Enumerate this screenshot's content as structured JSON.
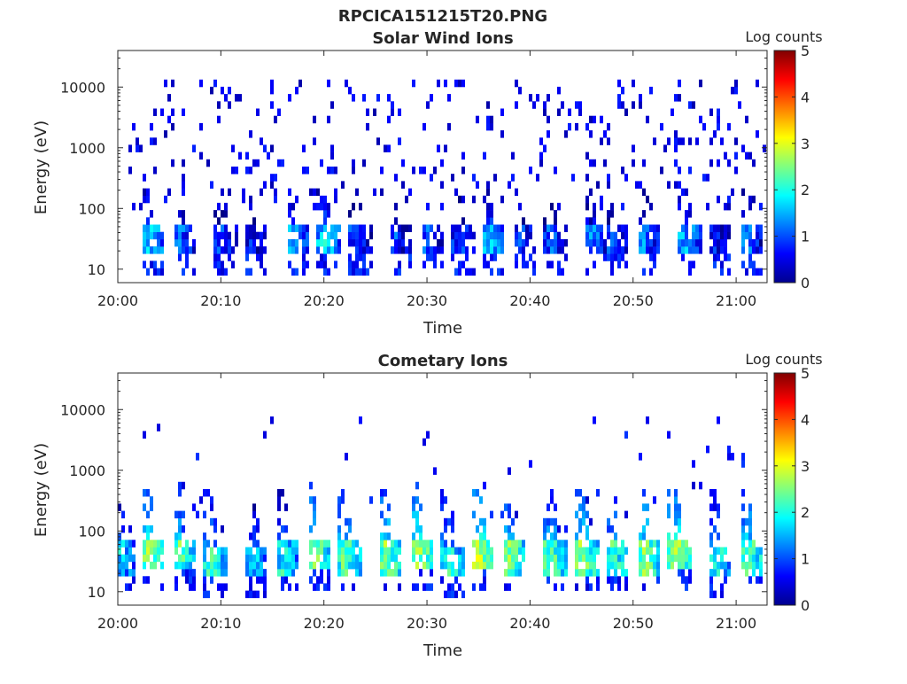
{
  "figure_title": "RPCICA151215T20.PNG",
  "colormap": "jet",
  "chart_data": [
    {
      "type": "heatmap",
      "title": "Solar Wind Ions",
      "xlabel": "Time",
      "ylabel": "Energy (eV)",
      "x_ticks": [
        "20:00",
        "20:10",
        "20:20",
        "20:30",
        "20:40",
        "20:50",
        "21:00"
      ],
      "xlim": [
        "20:00",
        "21:03"
      ],
      "y_scale": "log",
      "y_ticks": [
        "10",
        "100",
        "1000",
        "10000"
      ],
      "ylim": [
        6,
        40000
      ],
      "colorbar": {
        "label": "Log counts",
        "ticks": [
          "0",
          "1",
          "2",
          "3",
          "4",
          "5"
        ],
        "range": [
          0,
          5
        ]
      },
      "grid": false,
      "bursts": [
        {
          "time": "20:03",
          "peak_energy_ev": 30,
          "peak_log_counts": 2.2
        },
        {
          "time": "20:06",
          "peak_energy_ev": 30,
          "peak_log_counts": 1.6
        },
        {
          "time": "20:10",
          "peak_energy_ev": 30,
          "peak_log_counts": 1.4
        },
        {
          "time": "20:13",
          "peak_energy_ev": 30,
          "peak_log_counts": 1.2
        },
        {
          "time": "20:17",
          "peak_energy_ev": 30,
          "peak_log_counts": 2.0
        },
        {
          "time": "20:20",
          "peak_energy_ev": 30,
          "peak_log_counts": 2.2
        },
        {
          "time": "20:23",
          "peak_energy_ev": 30,
          "peak_log_counts": 1.5
        },
        {
          "time": "20:27",
          "peak_energy_ev": 30,
          "peak_log_counts": 1.4
        },
        {
          "time": "20:30",
          "peak_energy_ev": 30,
          "peak_log_counts": 1.6
        },
        {
          "time": "20:33",
          "peak_energy_ev": 30,
          "peak_log_counts": 1.5
        },
        {
          "time": "20:36",
          "peak_energy_ev": 30,
          "peak_log_counts": 2.2
        },
        {
          "time": "20:39",
          "peak_energy_ev": 30,
          "peak_log_counts": 1.4
        },
        {
          "time": "20:42",
          "peak_energy_ev": 30,
          "peak_log_counts": 1.5
        },
        {
          "time": "20:46",
          "peak_energy_ev": 30,
          "peak_log_counts": 1.8
        },
        {
          "time": "20:48",
          "peak_energy_ev": 30,
          "peak_log_counts": 1.6
        },
        {
          "time": "20:51",
          "peak_energy_ev": 30,
          "peak_log_counts": 1.7
        },
        {
          "time": "20:55",
          "peak_energy_ev": 30,
          "peak_log_counts": 2.0
        },
        {
          "time": "20:58",
          "peak_energy_ev": 30,
          "peak_log_counts": 1.2
        },
        {
          "time": "21:01",
          "peak_energy_ev": 30,
          "peak_log_counts": 1.7
        }
      ],
      "background_log_counts": 0.2,
      "background_energy_range_ev": [
        100,
        15000
      ]
    },
    {
      "type": "heatmap",
      "title": "Cometary Ions",
      "xlabel": "Time",
      "ylabel": "Energy (eV)",
      "x_ticks": [
        "20:00",
        "20:10",
        "20:20",
        "20:30",
        "20:40",
        "20:50",
        "21:00"
      ],
      "xlim": [
        "20:00",
        "21:03"
      ],
      "y_scale": "log",
      "y_ticks": [
        "10",
        "100",
        "1000",
        "10000"
      ],
      "ylim": [
        6,
        40000
      ],
      "colorbar": {
        "label": "Log counts",
        "ticks": [
          "0",
          "1",
          "2",
          "3",
          "4",
          "5"
        ],
        "range": [
          0,
          5
        ]
      },
      "grid": false,
      "bursts": [
        {
          "time": "20:00",
          "peak_energy_ev": 35,
          "peak_log_counts": 2.2
        },
        {
          "time": "20:03",
          "peak_energy_ev": 40,
          "peak_log_counts": 3.0
        },
        {
          "time": "20:06",
          "peak_energy_ev": 40,
          "peak_log_counts": 2.8
        },
        {
          "time": "20:09",
          "peak_energy_ev": 30,
          "peak_log_counts": 2.6
        },
        {
          "time": "20:13",
          "peak_energy_ev": 30,
          "peak_log_counts": 2.2
        },
        {
          "time": "20:16",
          "peak_energy_ev": 35,
          "peak_log_counts": 2.4
        },
        {
          "time": "20:19",
          "peak_energy_ev": 40,
          "peak_log_counts": 3.0
        },
        {
          "time": "20:22",
          "peak_energy_ev": 35,
          "peak_log_counts": 2.8
        },
        {
          "time": "20:26",
          "peak_energy_ev": 35,
          "peak_log_counts": 3.0
        },
        {
          "time": "20:29",
          "peak_energy_ev": 40,
          "peak_log_counts": 3.1
        },
        {
          "time": "20:32",
          "peak_energy_ev": 30,
          "peak_log_counts": 2.6
        },
        {
          "time": "20:35",
          "peak_energy_ev": 40,
          "peak_log_counts": 3.2
        },
        {
          "time": "20:38",
          "peak_energy_ev": 35,
          "peak_log_counts": 2.9
        },
        {
          "time": "20:42",
          "peak_energy_ev": 35,
          "peak_log_counts": 2.8
        },
        {
          "time": "20:45",
          "peak_energy_ev": 35,
          "peak_log_counts": 3.0
        },
        {
          "time": "20:48",
          "peak_energy_ev": 35,
          "peak_log_counts": 2.7
        },
        {
          "time": "20:51",
          "peak_energy_ev": 35,
          "peak_log_counts": 3.0
        },
        {
          "time": "20:54",
          "peak_energy_ev": 40,
          "peak_log_counts": 3.2
        },
        {
          "time": "20:58",
          "peak_energy_ev": 30,
          "peak_log_counts": 2.5
        },
        {
          "time": "21:01",
          "peak_energy_ev": 35,
          "peak_log_counts": 2.9
        }
      ],
      "background_log_counts": 0.3,
      "background_energy_range_ev": [
        100,
        8000
      ]
    }
  ]
}
